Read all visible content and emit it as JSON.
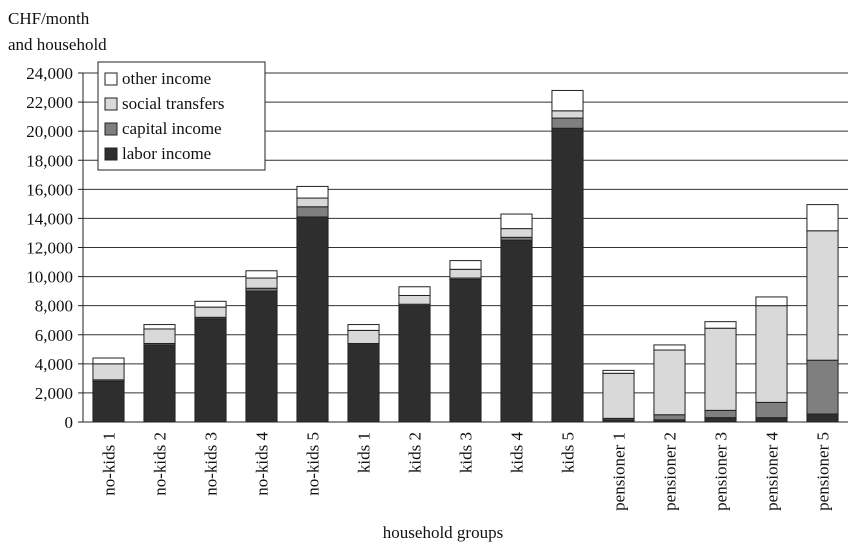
{
  "chart_data": {
    "type": "bar",
    "stacked": true,
    "title": "",
    "ylabel_line1": "CHF/month",
    "ylabel_line2": "and household",
    "xlabel": "household groups",
    "ylim": [
      0,
      24000
    ],
    "yticks": [
      0,
      2000,
      4000,
      6000,
      8000,
      10000,
      12000,
      14000,
      16000,
      18000,
      20000,
      22000,
      24000
    ],
    "ytick_labels": [
      "0",
      "2,000",
      "4,000",
      "6,000",
      "8,000",
      "10,000",
      "12,000",
      "14,000",
      "16,000",
      "18,000",
      "20,000",
      "22,000",
      "24,000"
    ],
    "grid": true,
    "legend_position": "top-left",
    "categories": [
      "no-kids 1",
      "no-kids 2",
      "no-kids 3",
      "no-kids 4",
      "no-kids 5",
      "kids 1",
      "kids 2",
      "kids 3",
      "kids 4",
      "kids 5",
      "pensioner 1",
      "pensioner 2",
      "pensioner 3",
      "pensioner 4",
      "pensioner 5"
    ],
    "series": [
      {
        "name": "labor income",
        "color": "#2e2e2e",
        "values": [
          2800,
          5300,
          7100,
          9000,
          14100,
          5400,
          8000,
          9800,
          12500,
          20200,
          150,
          150,
          300,
          300,
          550
        ]
      },
      {
        "name": "capital income",
        "color": "#7f7f7f",
        "values": [
          100,
          100,
          100,
          200,
          700,
          0,
          100,
          100,
          200,
          700,
          100,
          350,
          500,
          1050,
          3700
        ]
      },
      {
        "name": "social transfers",
        "color": "#d9d9d9",
        "values": [
          1100,
          1000,
          700,
          700,
          600,
          900,
          600,
          600,
          600,
          500,
          3100,
          4450,
          5650,
          6650,
          8900
        ]
      },
      {
        "name": "other income",
        "color": "#ffffff",
        "values": [
          400,
          300,
          400,
          500,
          800,
          400,
          600,
          600,
          1000,
          1400,
          200,
          350,
          450,
          600,
          1800
        ]
      }
    ]
  }
}
